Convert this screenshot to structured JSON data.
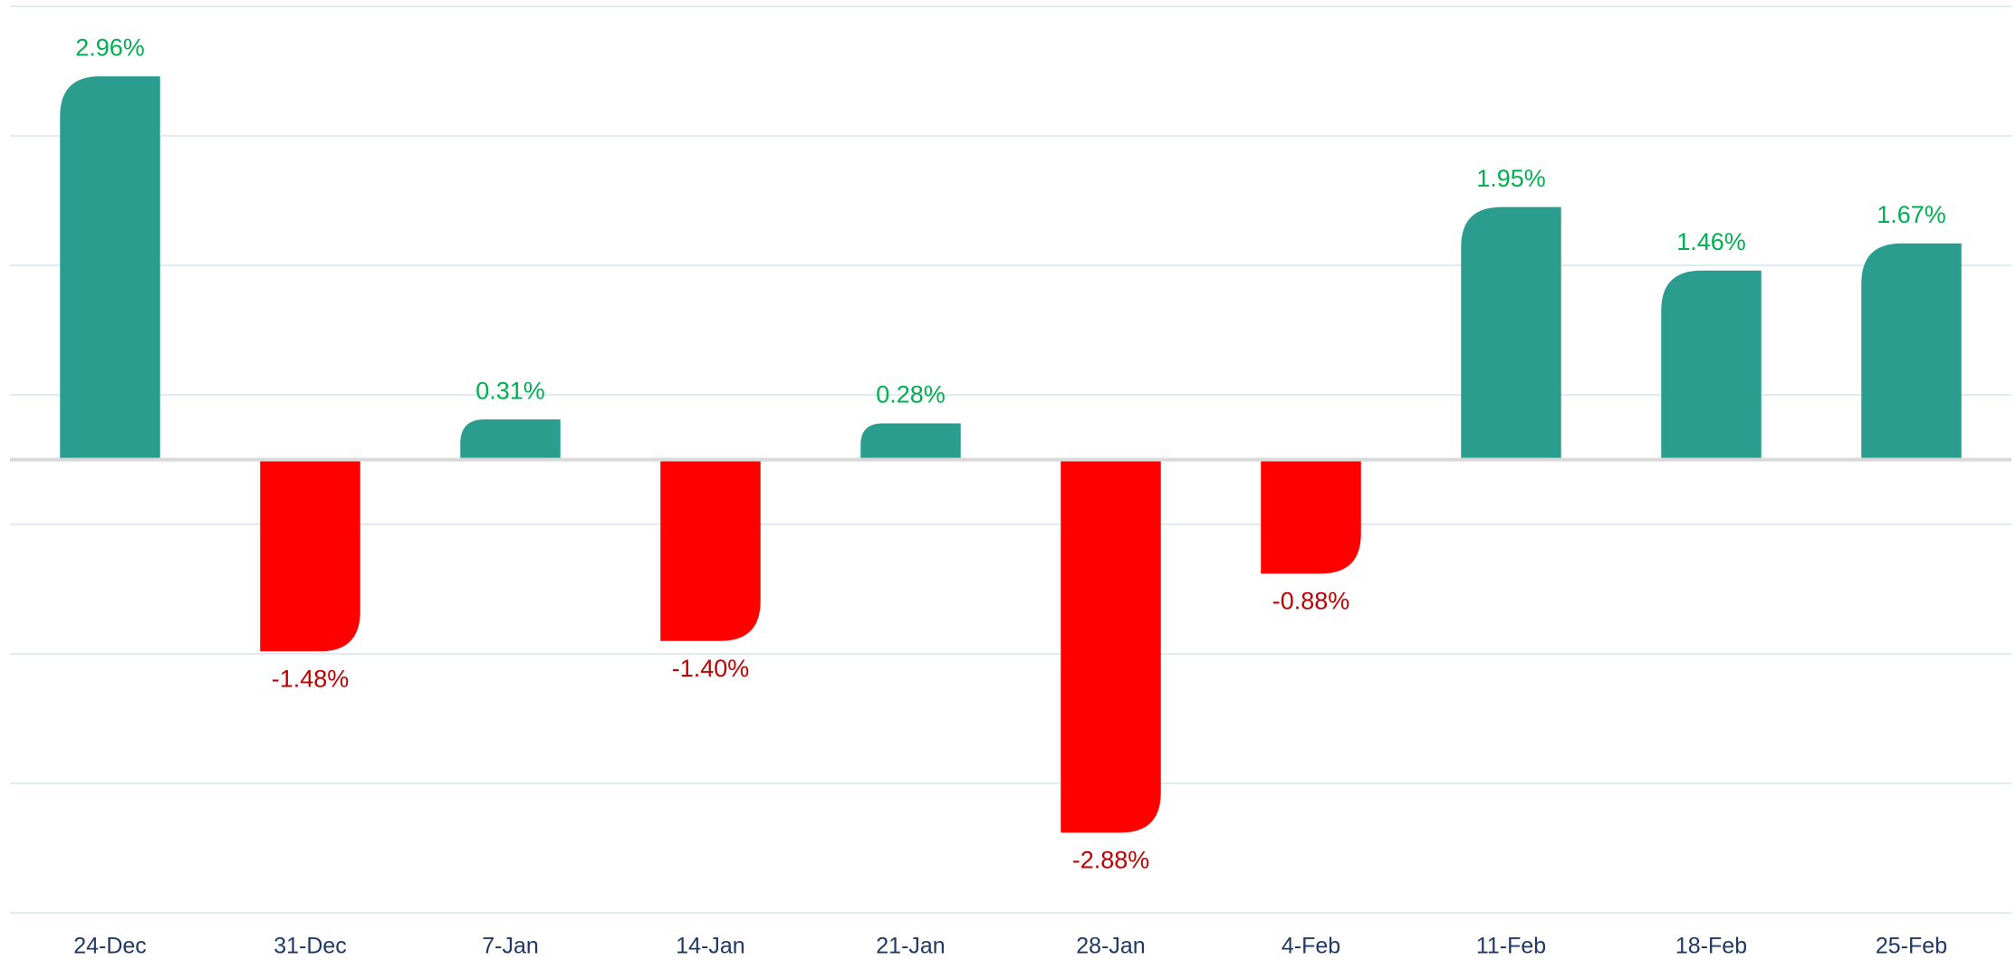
{
  "chart_data": {
    "type": "bar",
    "categories": [
      "24-Dec",
      "31-Dec",
      "7-Jan",
      "14-Jan",
      "21-Jan",
      "28-Jan",
      "4-Feb",
      "11-Feb",
      "18-Feb",
      "25-Feb"
    ],
    "values": [
      2.96,
      -1.48,
      0.31,
      -1.4,
      0.28,
      -2.88,
      -0.88,
      1.95,
      1.46,
      1.67
    ],
    "value_labels": [
      "2.96%",
      "-1.48%",
      "0.31%",
      "-1.40%",
      "0.28%",
      "-2.88%",
      "-0.88%",
      "1.95%",
      "1.46%",
      "1.67%"
    ],
    "positive_color": "#2a9d8f",
    "negative_color": "#ff0000",
    "positive_label_color": "#00b050",
    "negative_label_color": "#c00000",
    "ylim": [
      -3.5,
      3.5
    ],
    "yticks": [
      -3.5,
      -2.5,
      -1.5,
      -0.5,
      0.5,
      1.5,
      2.5,
      3.5
    ],
    "grid": true
  }
}
